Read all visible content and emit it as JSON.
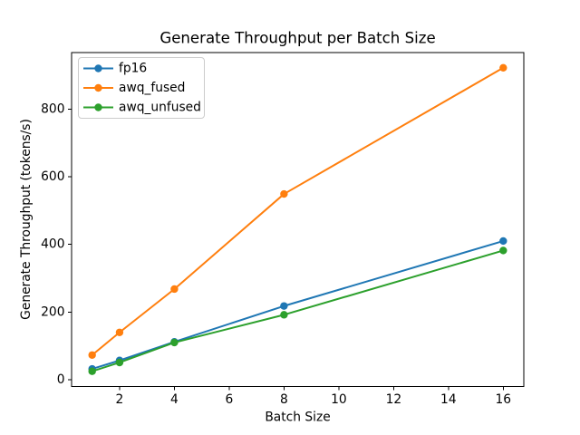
{
  "chart_data": {
    "type": "line",
    "title": "Generate Throughput per Batch Size",
    "xlabel": "Batch Size",
    "ylabel": "Generate Throughput (tokens/s)",
    "x": [
      1,
      2,
      4,
      8,
      16
    ],
    "series": [
      {
        "name": "fp16",
        "color": "#1f77b4",
        "values": [
          32,
          57,
          112,
          218,
          410
        ]
      },
      {
        "name": "awq_fused",
        "color": "#ff7f0e",
        "values": [
          73,
          140,
          268,
          549,
          922
        ]
      },
      {
        "name": "awq_unfused",
        "color": "#2ca02c",
        "values": [
          25,
          51,
          110,
          192,
          382
        ]
      }
    ],
    "xlim": [
      0.25,
      16.75
    ],
    "ylim": [
      -20,
      967
    ],
    "xticks": [
      2,
      4,
      6,
      8,
      10,
      12,
      14,
      16
    ],
    "yticks": [
      0,
      200,
      400,
      600,
      800
    ],
    "grid": false,
    "legend_position": "upper left",
    "marker": "o",
    "axis_color": "#000000",
    "legend_border_color": "#cccccc",
    "background_color": "#ffffff"
  }
}
